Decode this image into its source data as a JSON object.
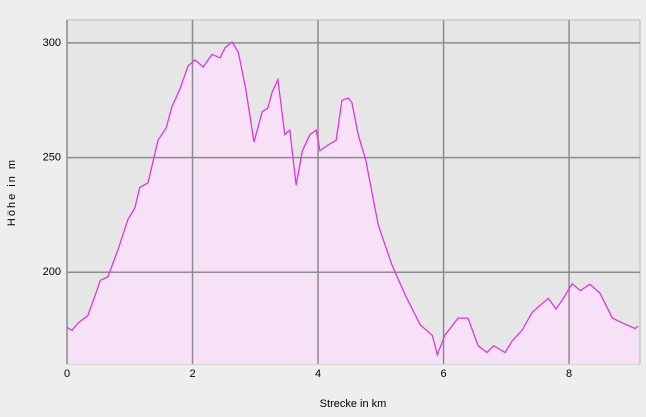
{
  "chart_data": {
    "type": "area",
    "x_label": "Strecke in km",
    "y_label": "Höhe in m",
    "x": [
      0,
      0.08,
      0.18,
      0.33,
      0.45,
      0.53,
      0.65,
      0.81,
      0.97,
      1.08,
      1.16,
      1.29,
      1.45,
      1.58,
      1.67,
      1.8,
      1.93,
      2.04,
      2.17,
      2.31,
      2.44,
      2.52,
      2.63,
      2.73,
      2.85,
      2.98,
      3.11,
      3.2,
      3.27,
      3.36,
      3.47,
      3.55,
      3.65,
      3.75,
      3.87,
      3.97,
      4.03,
      4.16,
      4.29,
      4.38,
      4.48,
      4.54,
      4.64,
      4.76,
      4.96,
      5.18,
      5.39,
      5.63,
      5.82,
      5.9,
      6.02,
      6.23,
      6.39,
      6.55,
      6.69,
      6.8,
      6.98,
      7.09,
      7.25,
      7.41,
      7.54,
      7.67,
      7.79,
      7.89,
      8.05,
      8.18,
      8.33,
      8.49,
      8.69,
      8.84,
      9.05,
      9.1
    ],
    "values": [
      176,
      174.7,
      178,
      181,
      190,
      196.5,
      198,
      209.6,
      223,
      228,
      237,
      239,
      257.6,
      263,
      272,
      280,
      290,
      292.6,
      289.5,
      295,
      293.5,
      298,
      300.4,
      296,
      279.5,
      256.8,
      270,
      271.6,
      278.6,
      284,
      260,
      262,
      238,
      253,
      260,
      262,
      253,
      255.5,
      257.6,
      275,
      276,
      274,
      260,
      249,
      220.5,
      203,
      190,
      177,
      172.5,
      164,
      172.5,
      180,
      180,
      168,
      165,
      168,
      165,
      170,
      174.7,
      182.5,
      185.6,
      188.6,
      184,
      187.8,
      195,
      192,
      194.8,
      191,
      180,
      178,
      175.5,
      176.5
    ],
    "color": "#e632e6",
    "fill_color": "#f6e1f6",
    "xlim": [
      0,
      9.13
    ],
    "ylim": [
      160,
      310
    ],
    "xticks": [
      0,
      2,
      4,
      6,
      8
    ],
    "yticks": [
      200,
      250,
      300
    ],
    "grid": true
  }
}
